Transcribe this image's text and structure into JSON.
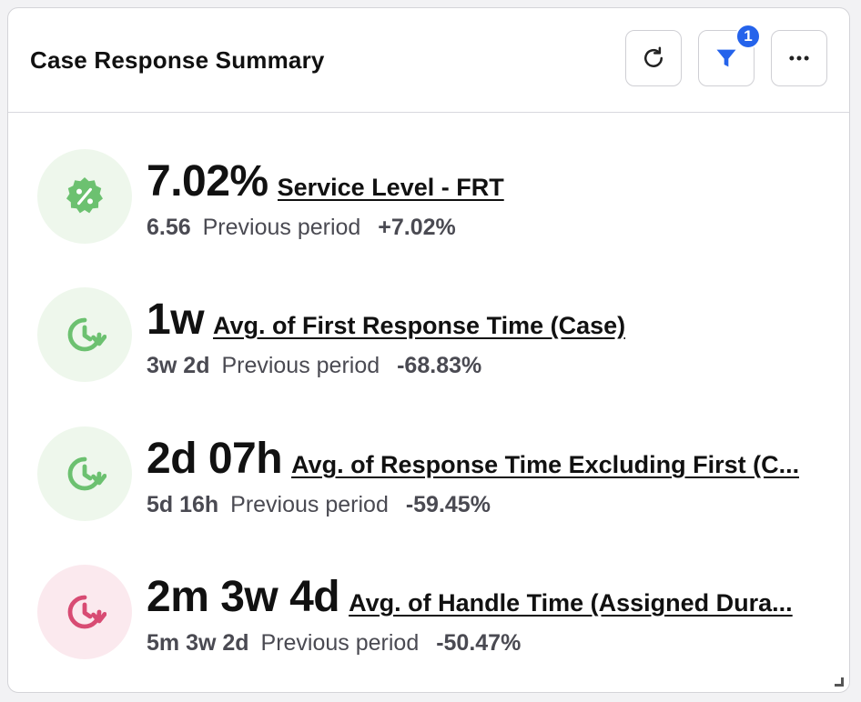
{
  "header": {
    "title": "Case Response Summary",
    "filter_badge": "1"
  },
  "colors": {
    "accent_blue": "#2563eb",
    "green_icon": "#6cc170",
    "pink_icon": "#d84b73"
  },
  "metrics": [
    {
      "icon": "percent-badge-icon",
      "value": "7.02%",
      "label": "Service Level - FRT",
      "previous_value": "6.56",
      "previous_label": "Previous period",
      "change": "+7.02%"
    },
    {
      "icon": "clock-refresh-icon",
      "value": "1w",
      "label": "Avg. of First Response Time (Case)",
      "previous_value": "3w 2d",
      "previous_label": "Previous period",
      "change": "-68.83%"
    },
    {
      "icon": "clock-refresh-icon",
      "value": "2d 07h",
      "label": "Avg. of Response Time Excluding First (C...",
      "previous_value": "5d 16h",
      "previous_label": "Previous period",
      "change": "-59.45%"
    },
    {
      "icon": "clock-refresh-icon",
      "value": "2m 3w 4d",
      "label": "Avg. of Handle Time (Assigned Dura...",
      "previous_value": "5m 3w 2d",
      "previous_label": "Previous period",
      "change": "-50.47%"
    }
  ]
}
